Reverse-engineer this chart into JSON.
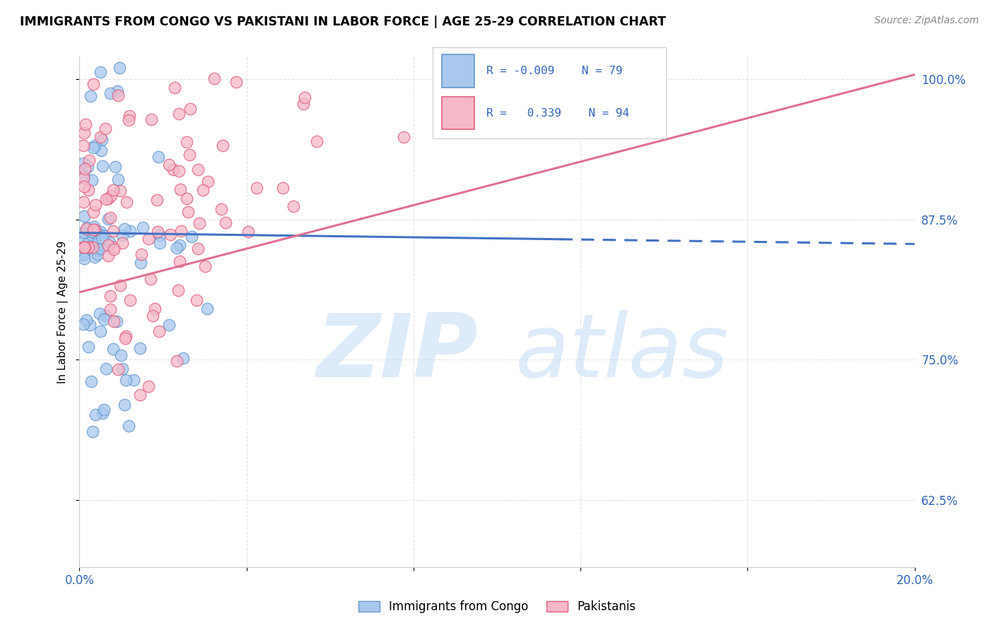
{
  "title": "IMMIGRANTS FROM CONGO VS PAKISTANI IN LABOR FORCE | AGE 25-29 CORRELATION CHART",
  "source": "Source: ZipAtlas.com",
  "ylabel": "In Labor Force | Age 25-29",
  "xlim": [
    0.0,
    0.2
  ],
  "ylim": [
    0.565,
    1.02
  ],
  "yticks": [
    0.625,
    0.75,
    0.875,
    1.0
  ],
  "ytick_labels": [
    "62.5%",
    "75.0%",
    "87.5%",
    "100.0%"
  ],
  "xticks": [
    0.0,
    0.04,
    0.08,
    0.12,
    0.16,
    0.2
  ],
  "xtick_labels": [
    "0.0%",
    "",
    "",
    "",
    "",
    "20.0%"
  ],
  "legend_r_congo": "-0.009",
  "legend_n_congo": "79",
  "legend_r_pak": "0.339",
  "legend_n_pak": "94",
  "color_congo_fill": "#A8C8EE",
  "color_congo_edge": "#6699CC",
  "color_pak_fill": "#F5B8C8",
  "color_pak_edge": "#E06080",
  "color_congo_line": "#4472C4",
  "color_pak_line": "#E07090",
  "watermark_zip_color": "#C8DFF5",
  "watermark_atlas_color": "#C8DFF5"
}
